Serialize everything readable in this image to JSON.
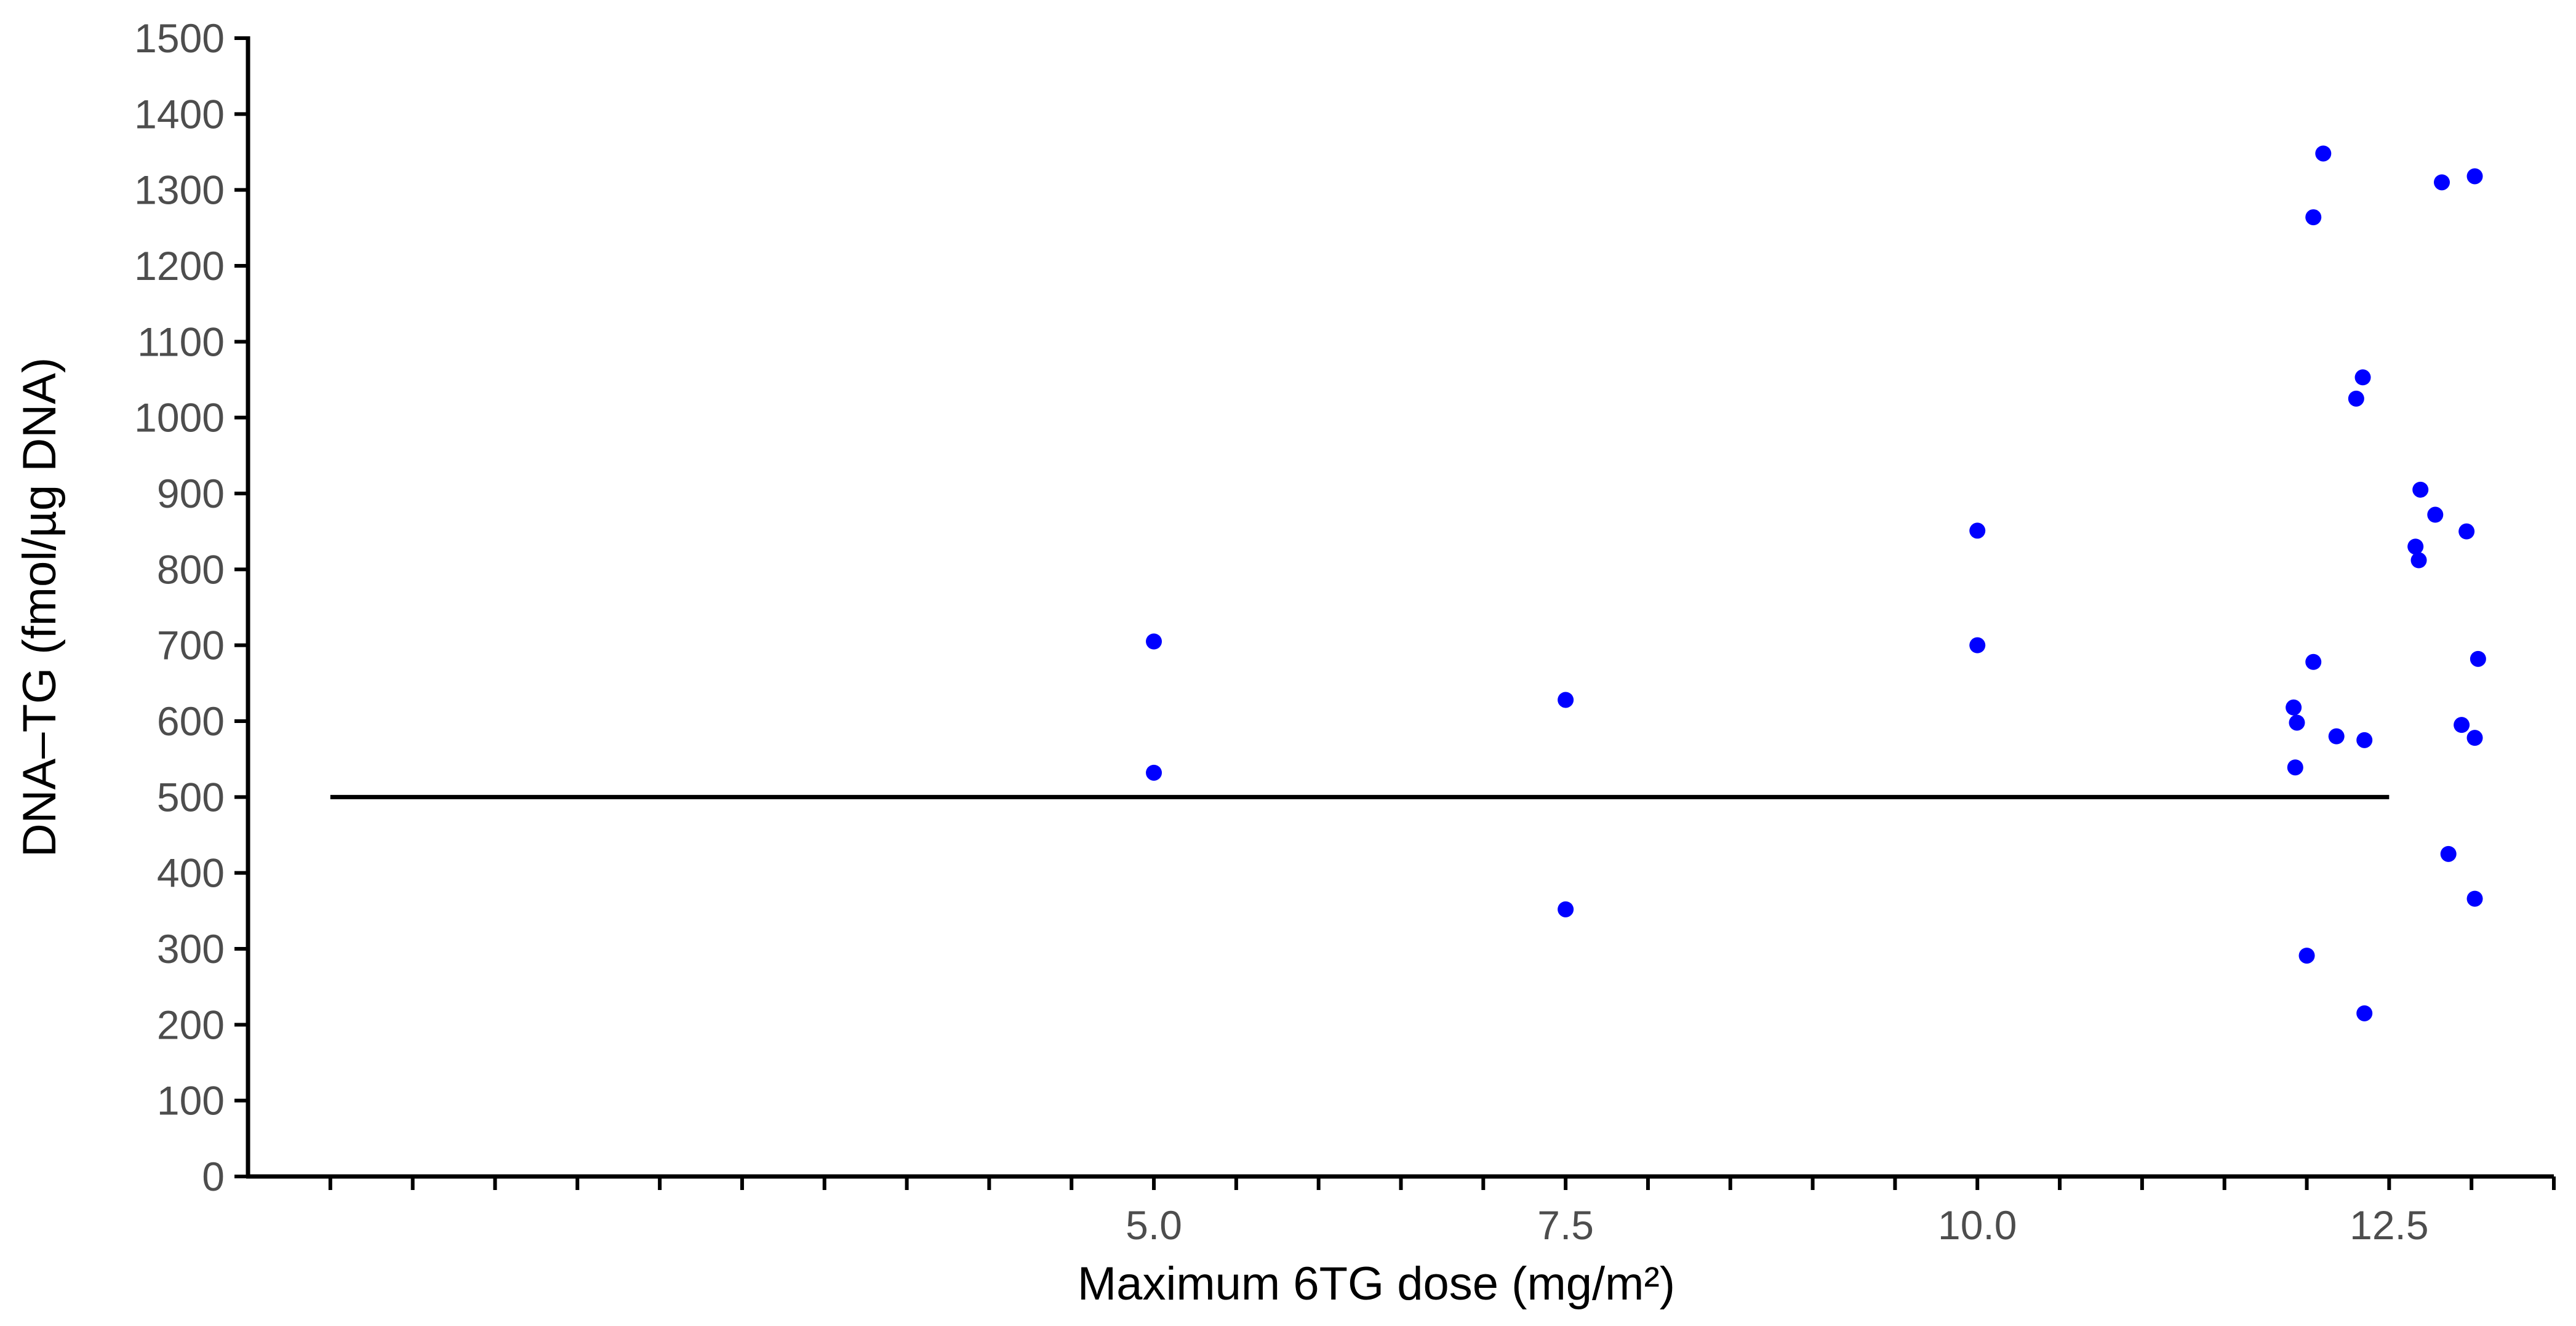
{
  "chart_data": {
    "type": "scatter",
    "title": "",
    "xlabel": "Maximum 6TG dose (mg/m²)",
    "ylabel": "DNA–TG (fmol/µg DNA)",
    "xlim": [
      -0.5,
      13.5
    ],
    "ylim": [
      0,
      1500
    ],
    "x_ticks": [
      5.0,
      7.5,
      10.0,
      12.5
    ],
    "x_tick_labels": [
      "5.0",
      "7.5",
      "10.0",
      "12.5"
    ],
    "x_minor_ticks": [
      0,
      0.5,
      1,
      1.5,
      2,
      2.5,
      3,
      3.5,
      4,
      4.5,
      5.5,
      6,
      6.5,
      7,
      8,
      8.5,
      9,
      9.5,
      10.5,
      11,
      11.5,
      12,
      13,
      13.5
    ],
    "y_ticks": [
      0,
      100,
      200,
      300,
      400,
      500,
      600,
      700,
      800,
      900,
      1000,
      1100,
      1200,
      1300,
      1400,
      1500
    ],
    "y_tick_labels": [
      "0",
      "100",
      "200",
      "300",
      "400",
      "500",
      "600",
      "700",
      "800",
      "900",
      "1000",
      "1100",
      "1200",
      "1300",
      "1400",
      "1500"
    ],
    "grid": false,
    "point_color": "#0000ff",
    "reference_line": {
      "y": 500,
      "x_start": 0,
      "x_end": 12.5,
      "color": "#000000"
    },
    "points": [
      {
        "x": 5.0,
        "y": 705
      },
      {
        "x": 5.0,
        "y": 532
      },
      {
        "x": 7.5,
        "y": 628
      },
      {
        "x": 7.5,
        "y": 352
      },
      {
        "x": 10.0,
        "y": 851
      },
      {
        "x": 10.0,
        "y": 700
      },
      {
        "x": 12.1,
        "y": 1348
      },
      {
        "x": 12.04,
        "y": 1264
      },
      {
        "x": 12.82,
        "y": 1310
      },
      {
        "x": 13.02,
        "y": 1318
      },
      {
        "x": 12.34,
        "y": 1053
      },
      {
        "x": 12.3,
        "y": 1025
      },
      {
        "x": 12.69,
        "y": 905
      },
      {
        "x": 12.78,
        "y": 872
      },
      {
        "x": 12.66,
        "y": 830
      },
      {
        "x": 12.68,
        "y": 812
      },
      {
        "x": 12.97,
        "y": 850
      },
      {
        "x": 13.04,
        "y": 682
      },
      {
        "x": 12.04,
        "y": 678
      },
      {
        "x": 11.92,
        "y": 618
      },
      {
        "x": 11.94,
        "y": 598
      },
      {
        "x": 12.18,
        "y": 580
      },
      {
        "x": 12.35,
        "y": 575
      },
      {
        "x": 12.94,
        "y": 595
      },
      {
        "x": 13.02,
        "y": 578
      },
      {
        "x": 11.93,
        "y": 539
      },
      {
        "x": 12.86,
        "y": 425
      },
      {
        "x": 13.02,
        "y": 366
      },
      {
        "x": 12.0,
        "y": 291
      },
      {
        "x": 12.35,
        "y": 215
      }
    ]
  }
}
